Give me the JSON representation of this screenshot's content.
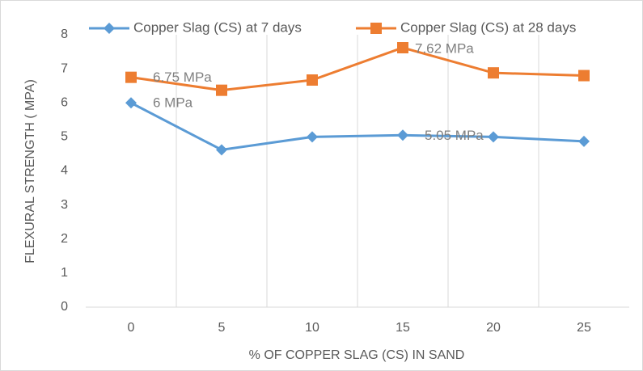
{
  "chart_data": {
    "type": "line",
    "x_label": "% OF COPPER SLAG (CS) IN SAND",
    "y_label": "FLEXURAL STRENGTH ( MPA)",
    "categories": [
      "0",
      "5",
      "10",
      "15",
      "20",
      "25"
    ],
    "series": [
      {
        "name": "Copper Slag (CS) at 7 days",
        "color": "#5b9bd5",
        "marker": "diamond",
        "values": [
          6,
          4.62,
          5.0,
          5.05,
          5.0,
          4.87
        ],
        "value_labels": [
          "6 MPa",
          null,
          null,
          "5.05 MPa",
          null,
          null
        ]
      },
      {
        "name": "Copper Slag (CS) at 28 days",
        "color": "#ed7d31",
        "marker": "square",
        "values": [
          6.75,
          6.37,
          6.67,
          7.62,
          6.88,
          6.8
        ],
        "value_labels": [
          "6.75 MPa",
          null,
          null,
          "7.62 MPa",
          null,
          null
        ]
      }
    ],
    "ylim": [
      0,
      8
    ],
    "yticks": [
      0,
      1,
      2,
      3,
      4,
      5,
      6,
      7,
      8
    ],
    "vertical_grid": true,
    "legend": "top"
  }
}
